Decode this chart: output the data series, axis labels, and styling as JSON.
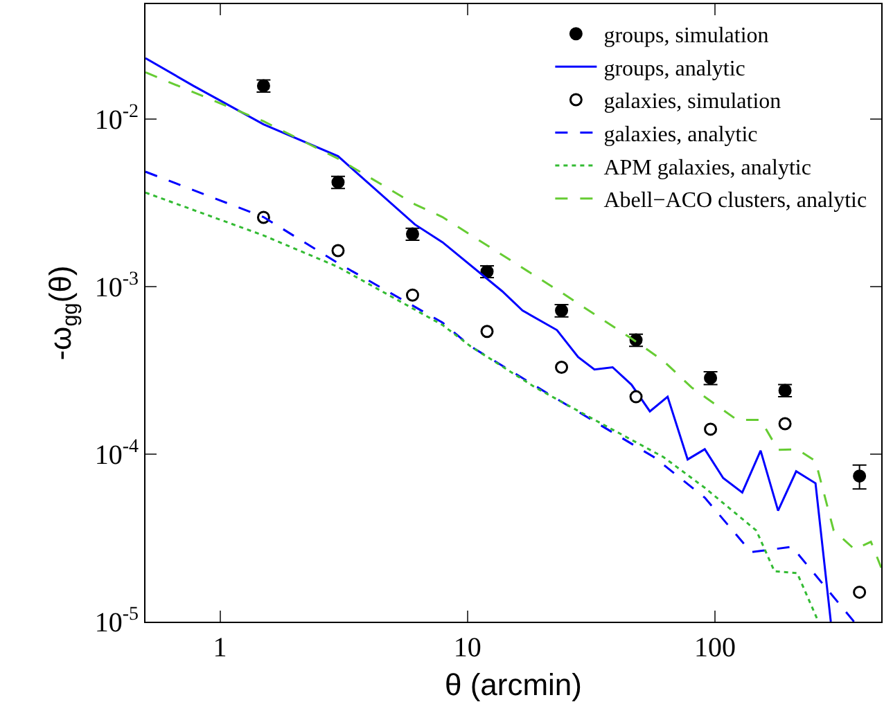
{
  "chart_data": {
    "type": "scatter",
    "xlabel": "θ (arcmin)",
    "ylabel": "-ω$_{gg}$(θ)",
    "log": "xy",
    "xlim": [
      0.5,
      470
    ],
    "ylim": [
      1e-05,
      0.0485
    ],
    "xticks": [
      1,
      10,
      100
    ],
    "yticks": [
      {
        "value": 1e-05,
        "label": "10$^{-5}$"
      },
      {
        "value": 0.0001,
        "label": "10$^{-4}$"
      },
      {
        "value": 0.001,
        "label": "10$^{-3}$"
      },
      {
        "value": 0.01,
        "label": "10$^{-2}$"
      }
    ],
    "grid": false,
    "legend": "top right",
    "series": [
      {
        "name": "groups, simulation",
        "marker": "circle",
        "color": "#000000",
        "x": [
          1.5,
          3,
          6,
          12,
          24,
          48,
          96,
          192,
          384
        ],
        "values": [
          0.0158,
          0.0042,
          0.00206,
          0.00123,
          0.00072,
          0.00048,
          0.000285,
          0.00024,
          7.4e-05
        ],
        "errors": [
          0.0013,
          0.00035,
          0.00017,
          0.0001,
          6e-05,
          4e-05,
          2.5e-05,
          2e-05,
          1.2e-05
        ]
      },
      {
        "name": "groups, analytic",
        "type": "line",
        "line_style": "solid",
        "color": "#0000ff",
        "x": [
          0.5,
          0.78,
          1.5,
          3,
          6.13,
          7.93,
          13.8,
          16.7,
          23,
          28,
          32.6,
          38.6,
          46,
          54.6,
          64.4,
          77.6,
          91,
          108,
          129,
          153,
          180,
          213,
          255,
          294
        ],
        "values": [
          0.0231,
          0.0158,
          0.0093,
          0.006,
          0.00235,
          0.00184,
          0.00094,
          0.00072,
          0.00055,
          0.00038,
          0.00032,
          0.00033,
          0.00026,
          0.00018,
          0.00022,
          9.3e-05,
          0.000107,
          7.2e-05,
          5.9e-05,
          0.000105,
          4.6e-05,
          7.9e-05,
          6.7e-05,
          1e-05
        ]
      },
      {
        "name": "galaxies, simulation",
        "marker": "circle",
        "color": "#ffffff",
        "x": [
          1.5,
          3,
          6,
          12,
          24,
          48,
          96,
          192,
          384
        ],
        "values": [
          0.00259,
          0.00164,
          0.00089,
          0.00054,
          0.00033,
          0.00022,
          0.000141,
          0.000152,
          1.5e-05
        ]
      },
      {
        "name": "galaxies, analytic",
        "type": "line",
        "line_style": "dashed",
        "color": "#0000ff",
        "x": [
          0.5,
          1.5,
          3,
          7.93,
          10.3,
          22.2,
          37,
          56.7,
          91,
          140,
          205,
          365
        ],
        "values": [
          0.00485,
          0.0026,
          0.00138,
          0.00061,
          0.00044,
          0.00022,
          0.00014,
          9.6e-05,
          5.5e-05,
          2.6e-05,
          2.8e-05,
          1e-05
        ]
      },
      {
        "name": "APM galaxies, analytic",
        "type": "line",
        "line_style": "dotted",
        "color": "#33bb33",
        "x": [
          0.5,
          1.5,
          3,
          7.93,
          10.3,
          18.8,
          34,
          62,
          91,
          147,
          174,
          215,
          262
        ],
        "values": [
          0.00364,
          0.00202,
          0.00131,
          0.00059,
          0.00044,
          0.00025,
          0.000155,
          9.6e-05,
          6.3e-05,
          3.5e-05,
          2e-05,
          1.95e-05,
          1e-05
        ]
      },
      {
        "name": "Abell−ACO clusters, analytic",
        "type": "line",
        "line_style": "dashed",
        "color": "#66cc33",
        "x": [
          0.5,
          1.5,
          3,
          6.13,
          7.93,
          24.3,
          46,
          62,
          80.5,
          123,
          153,
          180,
          215,
          255,
          302,
          367,
          427,
          470
        ],
        "values": [
          0.019,
          0.0097,
          0.0058,
          0.0031,
          0.0026,
          0.00091,
          0.00049,
          0.00036,
          0.00025,
          0.00016,
          0.00016,
          0.000106,
          0.000107,
          9.1e-05,
          3.5e-05,
          2.7e-05,
          3e-05,
          2.1e-05
        ]
      }
    ]
  }
}
